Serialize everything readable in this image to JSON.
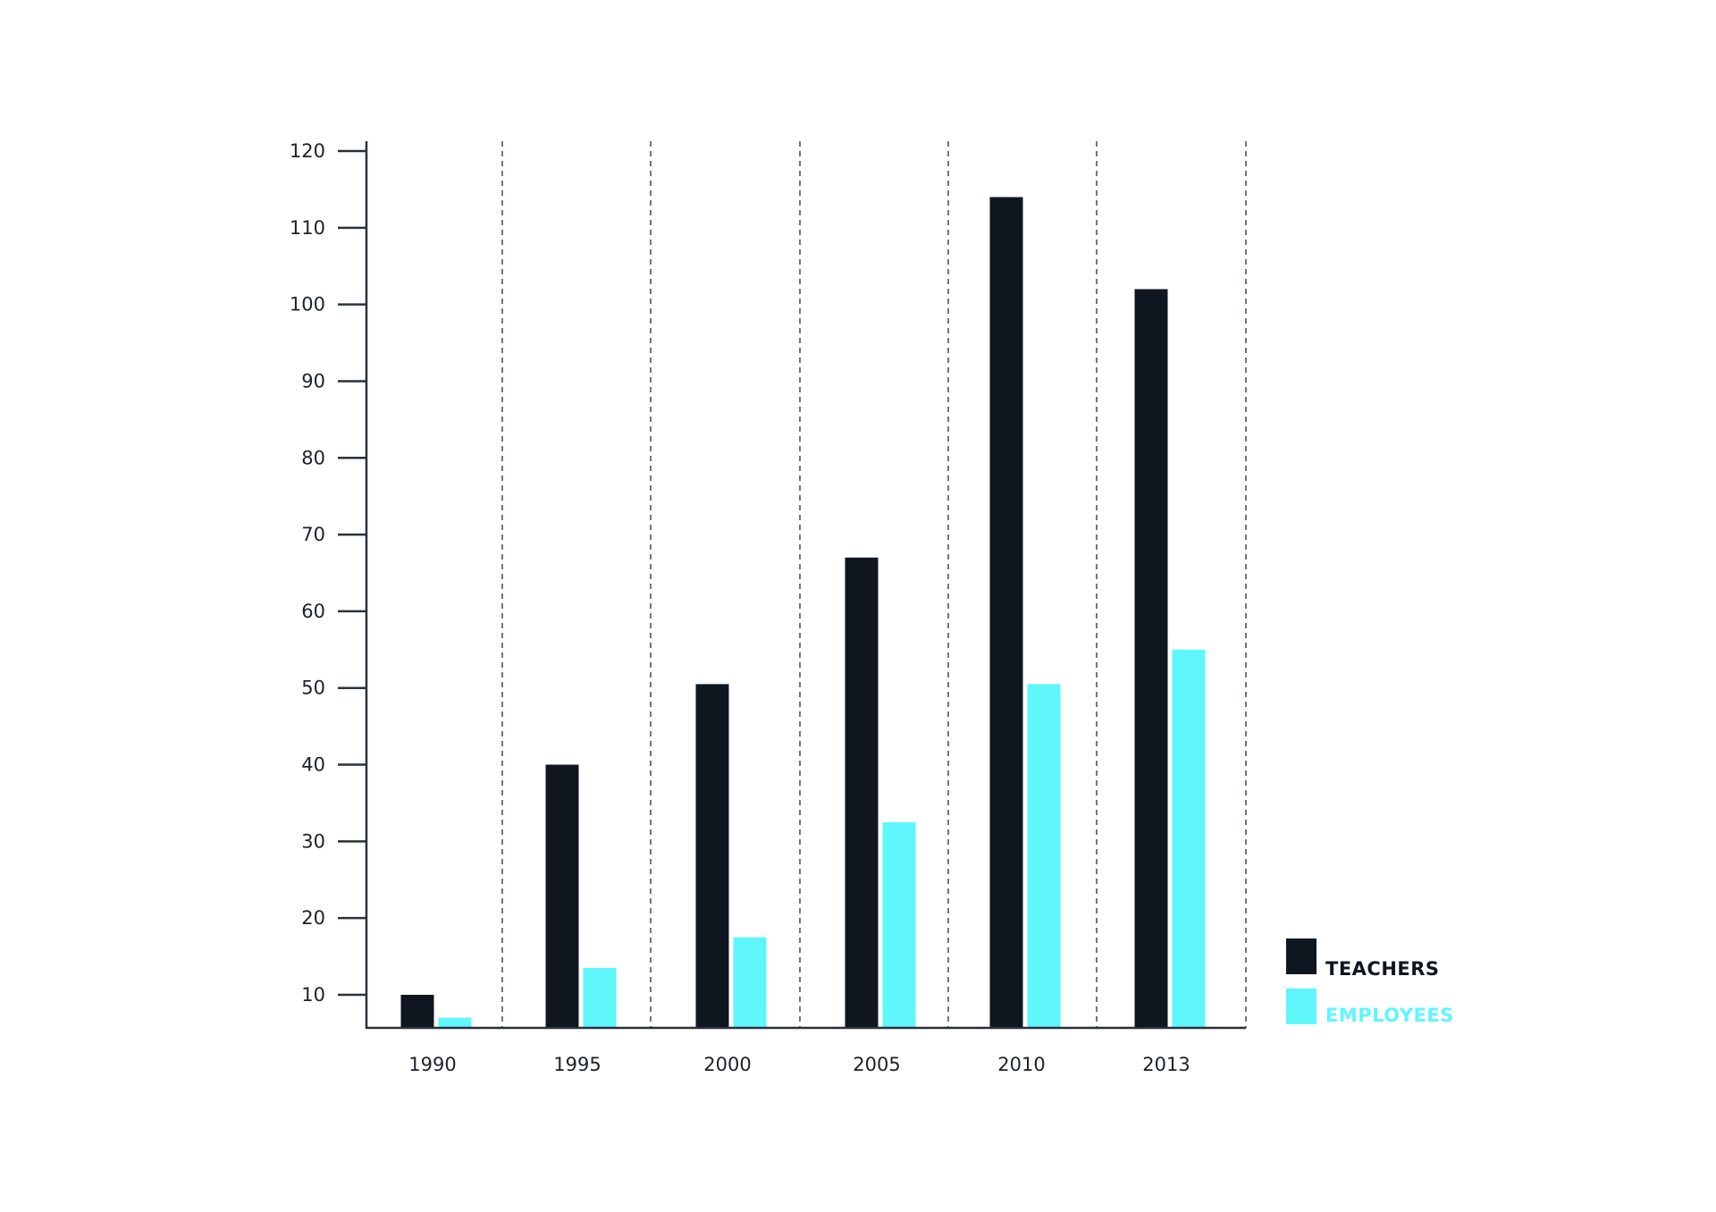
{
  "chart_data": {
    "type": "bar",
    "title": "",
    "xlabel": "",
    "ylabel": "",
    "categories": [
      "1990",
      "1995",
      "2000",
      "2005",
      "2010",
      "2013"
    ],
    "series": [
      {
        "name": "TEACHERS",
        "color": "#0f1620",
        "values": [
          10,
          40,
          50.5,
          67,
          114,
          102
        ]
      },
      {
        "name": "EMPLOYEES",
        "color": "#5ff6fc",
        "values": [
          7,
          13.5,
          17.5,
          32.5,
          50.5,
          55
        ]
      }
    ],
    "ylim": [
      6,
      120
    ],
    "yticks": [
      10,
      20,
      30,
      40,
      50,
      60,
      70,
      80,
      90,
      100,
      110,
      120
    ],
    "grid": "vertical-dashed-between-categories",
    "legend": "bottom-right",
    "axis_color": "#2a313c",
    "grid_color": "#4a5566"
  }
}
